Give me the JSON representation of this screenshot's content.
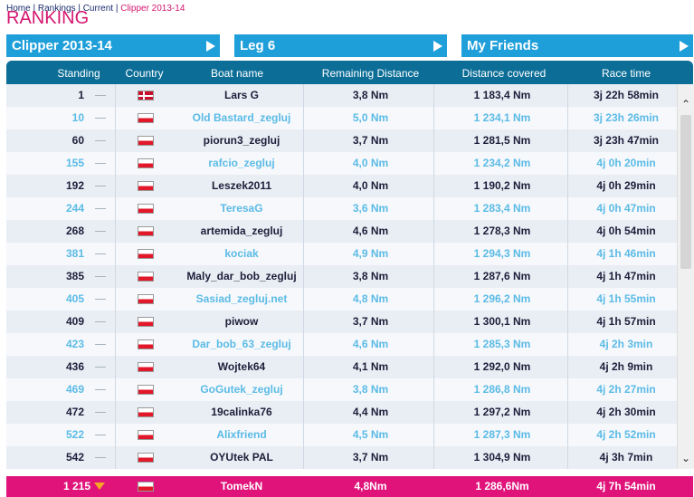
{
  "breadcrumb": {
    "home": "Home",
    "rankings": "Rankings",
    "current": "Current",
    "race": "Clipper 2013-14",
    "sep": " | "
  },
  "page_title": "RANKING",
  "nav": {
    "race": "Clipper 2013-14",
    "leg": "Leg 6",
    "filter": "My Friends"
  },
  "columns": {
    "standing": "Standing",
    "country": "Country",
    "boat": "Boat name",
    "remaining": "Remaining Distance",
    "covered": "Distance covered",
    "time": "Race time"
  },
  "rows": [
    {
      "standing": "1",
      "flag": "dk",
      "name": "Lars G",
      "remaining": "3,8 Nm",
      "covered": "1 183,4 Nm",
      "time": "3j 22h 58min"
    },
    {
      "standing": "10",
      "flag": "pl",
      "name": "Old Bastard_zegluj",
      "remaining": "5,0 Nm",
      "covered": "1 234,1 Nm",
      "time": "3j 23h 26min"
    },
    {
      "standing": "60",
      "flag": "pl",
      "name": "piorun3_zegluj",
      "remaining": "3,7 Nm",
      "covered": "1 281,5 Nm",
      "time": "3j 23h 47min"
    },
    {
      "standing": "155",
      "flag": "pl",
      "name": "rafcio_zegluj",
      "remaining": "4,0 Nm",
      "covered": "1 234,2 Nm",
      "time": "4j 0h 20min"
    },
    {
      "standing": "192",
      "flag": "pl",
      "name": "Leszek2011",
      "remaining": "4,0 Nm",
      "covered": "1 190,2 Nm",
      "time": "4j 0h 29min"
    },
    {
      "standing": "244",
      "flag": "pl",
      "name": "TeresaG",
      "remaining": "3,6 Nm",
      "covered": "1 283,4 Nm",
      "time": "4j 0h 47min"
    },
    {
      "standing": "268",
      "flag": "pl",
      "name": "artemida_zegluj",
      "remaining": "4,6 Nm",
      "covered": "1 278,3 Nm",
      "time": "4j 0h 54min"
    },
    {
      "standing": "381",
      "flag": "pl",
      "name": "kociak",
      "remaining": "4,9 Nm",
      "covered": "1 294,3 Nm",
      "time": "4j 1h 46min"
    },
    {
      "standing": "385",
      "flag": "pl",
      "name": "Maly_dar_bob_zegluj",
      "remaining": "3,8 Nm",
      "covered": "1 287,6 Nm",
      "time": "4j 1h 47min"
    },
    {
      "standing": "405",
      "flag": "pl",
      "name": "Sasiad_zegluj.net",
      "remaining": "4,8 Nm",
      "covered": "1 296,2 Nm",
      "time": "4j 1h 55min"
    },
    {
      "standing": "409",
      "flag": "pl",
      "name": "piwow",
      "remaining": "3,7 Nm",
      "covered": "1 300,1 Nm",
      "time": "4j 1h 57min"
    },
    {
      "standing": "423",
      "flag": "pl",
      "name": "Dar_bob_63_zegluj",
      "remaining": "4,6 Nm",
      "covered": "1 285,3 Nm",
      "time": "4j 2h 3min"
    },
    {
      "standing": "436",
      "flag": "pl",
      "name": "Wojtek64",
      "remaining": "4,1 Nm",
      "covered": "1 292,0 Nm",
      "time": "4j 2h 9min"
    },
    {
      "standing": "469",
      "flag": "pl",
      "name": "GoGutek_zegluj",
      "remaining": "3,8 Nm",
      "covered": "1 286,8 Nm",
      "time": "4j 2h 27min"
    },
    {
      "standing": "472",
      "flag": "pl",
      "name": "19calinka76",
      "remaining": "4,4 Nm",
      "covered": "1 297,2 Nm",
      "time": "4j 2h 30min"
    },
    {
      "standing": "522",
      "flag": "pl",
      "name": "Alixfriend",
      "remaining": "4,5 Nm",
      "covered": "1 287,3 Nm",
      "time": "4j 2h 52min"
    },
    {
      "standing": "542",
      "flag": "pl",
      "name": "OYUtek PAL",
      "remaining": "3,7 Nm",
      "covered": "1 304,9 Nm",
      "time": "4j 3h 7min"
    }
  ],
  "me": {
    "standing": "1 215",
    "flag": "pl",
    "name": "TomekN",
    "remaining": "4,8Nm",
    "covered": "1 286,6Nm",
    "time": "4j 7h 54min"
  },
  "colors": {
    "brand": "#d4166f",
    "nav": "#1f9fda",
    "header": "#0c6e97",
    "me": "#e0137b"
  }
}
